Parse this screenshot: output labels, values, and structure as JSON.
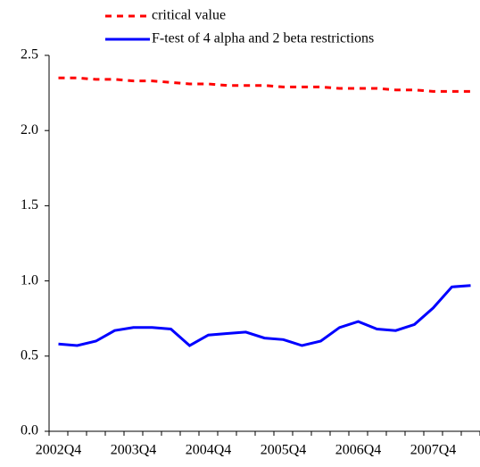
{
  "chart_data": {
    "type": "line",
    "categories": [
      "2002Q4",
      null,
      null,
      null,
      "2003Q4",
      null,
      null,
      null,
      "2004Q4",
      null,
      null,
      null,
      "2005Q4",
      null,
      null,
      null,
      "2006Q4",
      null,
      null,
      null,
      "2007Q4",
      null,
      null
    ],
    "series": [
      {
        "name": "critical value",
        "color": "#ff0000",
        "dashed": true,
        "values": [
          2.35,
          2.35,
          2.34,
          2.34,
          2.33,
          2.33,
          2.32,
          2.31,
          2.31,
          2.3,
          2.3,
          2.3,
          2.29,
          2.29,
          2.29,
          2.28,
          2.28,
          2.28,
          2.27,
          2.27,
          2.26,
          2.26,
          2.26
        ]
      },
      {
        "name": "F-test of 4 alpha and 2 beta restrictions",
        "color": "#0000ff",
        "dashed": false,
        "values": [
          0.58,
          0.57,
          0.6,
          0.67,
          0.69,
          0.69,
          0.68,
          0.57,
          0.64,
          0.65,
          0.66,
          0.62,
          0.61,
          0.57,
          0.6,
          0.69,
          0.73,
          0.68,
          0.67,
          0.71,
          0.82,
          0.96,
          0.97
        ]
      }
    ],
    "ylim": [
      0,
      2.5
    ],
    "yticks": [
      {
        "value": 0,
        "label": "0.0"
      },
      0.5,
      {
        "value": 1,
        "label": "1.0"
      },
      1.5,
      {
        "value": 2,
        "label": "2.0"
      },
      2.5
    ],
    "grid": false
  }
}
